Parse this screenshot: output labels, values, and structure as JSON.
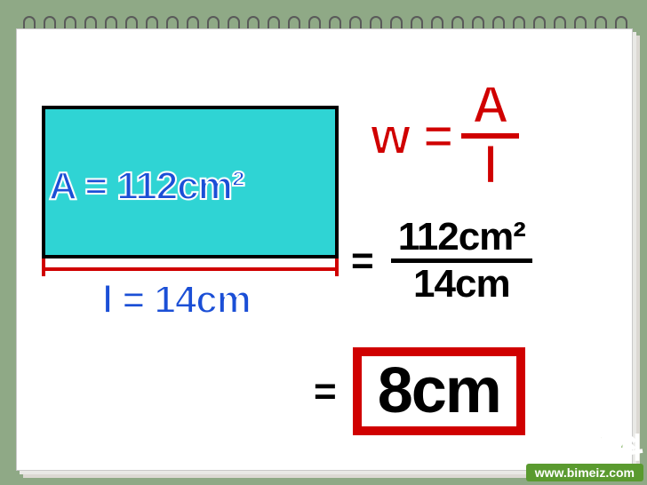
{
  "rectangle": {
    "fill_color": "#2fd4d4",
    "border_color": "#000000",
    "border_width": 4,
    "area_label": "A = 112cm²",
    "length_label": "l = 14cm",
    "bracket_color": "#d00000",
    "label_color": "#1b4fd6",
    "label_stroke": "#ffffff",
    "label_fontsize": 44
  },
  "formula": {
    "lhs": "w =",
    "numerator": "A",
    "denominator": "l",
    "color": "#d00000",
    "stroke": "#ffffff",
    "fontsize": 58
  },
  "substitution": {
    "eq": "=",
    "numerator": "112cm²",
    "denominator": "14cm",
    "color": "#000000",
    "fontsize": 44
  },
  "result": {
    "eq": "=",
    "value": "8cm",
    "box_color": "#d00000",
    "box_border_width": 10,
    "fontsize": 72
  },
  "background_color": "#8fa986",
  "paper_color": "#ffffff",
  "spiral": {
    "count": 30,
    "ring_color": "#5a5a5a",
    "hole_color": "#6b6b6b"
  },
  "watermark": {
    "title": "生活百科",
    "url": "www.bimeiz.com",
    "brand_color": "#5a9a2f"
  }
}
